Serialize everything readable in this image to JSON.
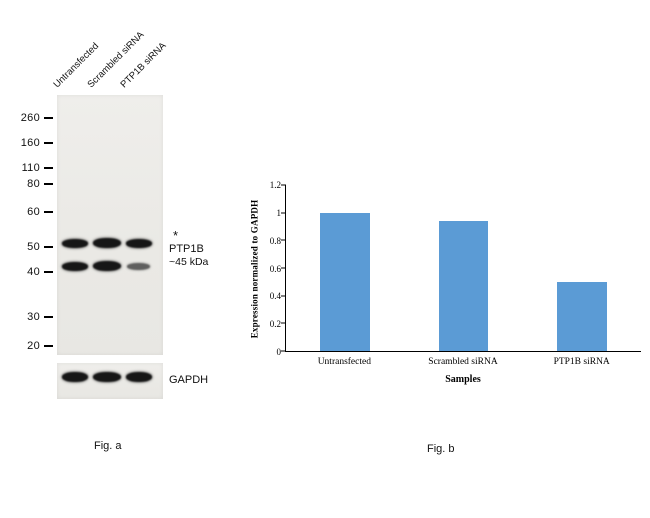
{
  "figure": {
    "fig_a": {
      "lane_labels": [
        "Untransfected",
        "Scrambled siRNA",
        "PTP1B siRNA"
      ],
      "mw_markers": [
        260,
        160,
        110,
        80,
        60,
        50,
        40,
        30,
        20
      ],
      "annotations": {
        "asterisk": "*",
        "band_label": "PTP1B",
        "band_size": "~45 kDa",
        "loading_control": "GAPDH"
      },
      "caption": "Fig. a"
    },
    "fig_b": {
      "caption": "Fig. b"
    }
  },
  "chart_data": {
    "type": "bar",
    "categories": [
      "Untransfected",
      "Scrambled siRNA",
      "PTP1B siRNA"
    ],
    "values": [
      1,
      0.94,
      0.5
    ],
    "title": "",
    "xlabel": "Samples",
    "ylabel": "Expression normalized to GAPDH",
    "ylim": [
      0,
      1.2
    ],
    "yticks": [
      0,
      0.2,
      0.4,
      0.6,
      0.8,
      1,
      1.2
    ],
    "bar_color": "#5B9BD5",
    "grid": false,
    "legend": false
  }
}
